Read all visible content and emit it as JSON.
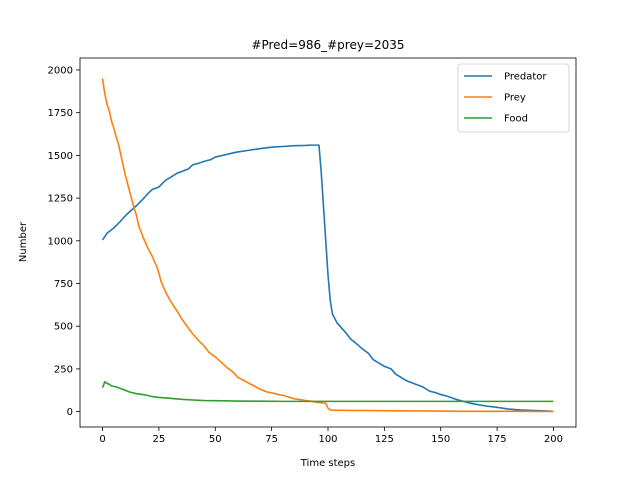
{
  "chart_data": {
    "type": "line",
    "title": "#Pred=986_#prey=2035",
    "xlabel": "Time steps",
    "ylabel": "Number",
    "xlim": [
      -10,
      210
    ],
    "ylim": [
      -90,
      2070
    ],
    "xticks": [
      0,
      25,
      50,
      75,
      100,
      125,
      150,
      175,
      200
    ],
    "yticks": [
      0,
      250,
      500,
      750,
      1000,
      1250,
      1500,
      1750,
      2000
    ],
    "grid": false,
    "legend_position": "upper-right",
    "series": [
      {
        "name": "Predator",
        "color": "#1f77b4",
        "points": [
          [
            0,
            1005
          ],
          [
            2,
            1045
          ],
          [
            5,
            1075
          ],
          [
            8,
            1115
          ],
          [
            10,
            1145
          ],
          [
            12,
            1170
          ],
          [
            15,
            1205
          ],
          [
            18,
            1245
          ],
          [
            20,
            1275
          ],
          [
            22,
            1300
          ],
          [
            25,
            1315
          ],
          [
            28,
            1355
          ],
          [
            30,
            1370
          ],
          [
            33,
            1395
          ],
          [
            35,
            1405
          ],
          [
            38,
            1420
          ],
          [
            40,
            1445
          ],
          [
            43,
            1455
          ],
          [
            45,
            1465
          ],
          [
            48,
            1475
          ],
          [
            50,
            1490
          ],
          [
            55,
            1505
          ],
          [
            58,
            1515
          ],
          [
            60,
            1520
          ],
          [
            65,
            1530
          ],
          [
            70,
            1540
          ],
          [
            75,
            1548
          ],
          [
            80,
            1552
          ],
          [
            85,
            1557
          ],
          [
            90,
            1558
          ],
          [
            92,
            1560
          ],
          [
            96,
            1560
          ],
          [
            97,
            1400
          ],
          [
            98,
            1200
          ],
          [
            99,
            1000
          ],
          [
            100,
            800
          ],
          [
            101,
            650
          ],
          [
            102,
            570
          ],
          [
            104,
            520
          ],
          [
            106,
            490
          ],
          [
            108,
            460
          ],
          [
            110,
            425
          ],
          [
            112,
            405
          ],
          [
            115,
            370
          ],
          [
            118,
            340
          ],
          [
            120,
            305
          ],
          [
            125,
            265
          ],
          [
            128,
            250
          ],
          [
            130,
            220
          ],
          [
            133,
            195
          ],
          [
            135,
            180
          ],
          [
            138,
            165
          ],
          [
            140,
            155
          ],
          [
            142,
            145
          ],
          [
            145,
            120
          ],
          [
            148,
            110
          ],
          [
            150,
            100
          ],
          [
            153,
            90
          ],
          [
            156,
            75
          ],
          [
            160,
            60
          ],
          [
            163,
            50
          ],
          [
            166,
            42
          ],
          [
            170,
            33
          ],
          [
            175,
            25
          ],
          [
            180,
            15
          ],
          [
            185,
            10
          ],
          [
            190,
            7
          ],
          [
            195,
            5
          ],
          [
            200,
            2
          ]
        ]
      },
      {
        "name": "Prey",
        "color": "#ff7f0e",
        "points": [
          [
            0,
            1950
          ],
          [
            1,
            1860
          ],
          [
            2,
            1800
          ],
          [
            3,
            1760
          ],
          [
            4,
            1700
          ],
          [
            5,
            1660
          ],
          [
            6,
            1610
          ],
          [
            7,
            1570
          ],
          [
            8,
            1510
          ],
          [
            9,
            1450
          ],
          [
            10,
            1390
          ],
          [
            12,
            1290
          ],
          [
            14,
            1190
          ],
          [
            15,
            1150
          ],
          [
            16,
            1090
          ],
          [
            18,
            1020
          ],
          [
            20,
            960
          ],
          [
            22,
            910
          ],
          [
            24,
            850
          ],
          [
            25,
            810
          ],
          [
            26,
            760
          ],
          [
            28,
            700
          ],
          [
            30,
            650
          ],
          [
            32,
            610
          ],
          [
            34,
            570
          ],
          [
            35,
            545
          ],
          [
            38,
            490
          ],
          [
            40,
            455
          ],
          [
            43,
            410
          ],
          [
            45,
            385
          ],
          [
            47,
            350
          ],
          [
            50,
            320
          ],
          [
            53,
            285
          ],
          [
            55,
            260
          ],
          [
            58,
            230
          ],
          [
            60,
            200
          ],
          [
            63,
            180
          ],
          [
            65,
            165
          ],
          [
            68,
            145
          ],
          [
            70,
            130
          ],
          [
            73,
            115
          ],
          [
            75,
            110
          ],
          [
            78,
            100
          ],
          [
            80,
            95
          ],
          [
            82,
            88
          ],
          [
            85,
            75
          ],
          [
            88,
            70
          ],
          [
            90,
            65
          ],
          [
            93,
            60
          ],
          [
            95,
            55
          ],
          [
            98,
            50
          ],
          [
            99,
            48
          ],
          [
            100,
            20
          ],
          [
            101,
            10
          ],
          [
            102,
            8
          ],
          [
            105,
            8
          ],
          [
            110,
            7
          ],
          [
            120,
            6
          ],
          [
            130,
            5
          ],
          [
            140,
            4
          ],
          [
            150,
            3
          ],
          [
            160,
            2
          ],
          [
            170,
            2
          ],
          [
            180,
            2
          ],
          [
            190,
            1
          ],
          [
            200,
            1
          ]
        ]
      },
      {
        "name": "Food",
        "color": "#2ca02c",
        "points": [
          [
            0,
            140
          ],
          [
            1,
            175
          ],
          [
            2,
            165
          ],
          [
            3,
            160
          ],
          [
            4,
            150
          ],
          [
            6,
            145
          ],
          [
            8,
            135
          ],
          [
            10,
            125
          ],
          [
            12,
            115
          ],
          [
            15,
            105
          ],
          [
            18,
            100
          ],
          [
            20,
            95
          ],
          [
            22,
            88
          ],
          [
            25,
            83
          ],
          [
            30,
            78
          ],
          [
            35,
            72
          ],
          [
            40,
            68
          ],
          [
            45,
            65
          ],
          [
            50,
            64
          ],
          [
            60,
            62
          ],
          [
            70,
            61
          ],
          [
            80,
            60
          ],
          [
            90,
            60
          ],
          [
            100,
            60
          ],
          [
            120,
            60
          ],
          [
            150,
            60
          ],
          [
            180,
            60
          ],
          [
            200,
            60
          ]
        ]
      }
    ]
  }
}
